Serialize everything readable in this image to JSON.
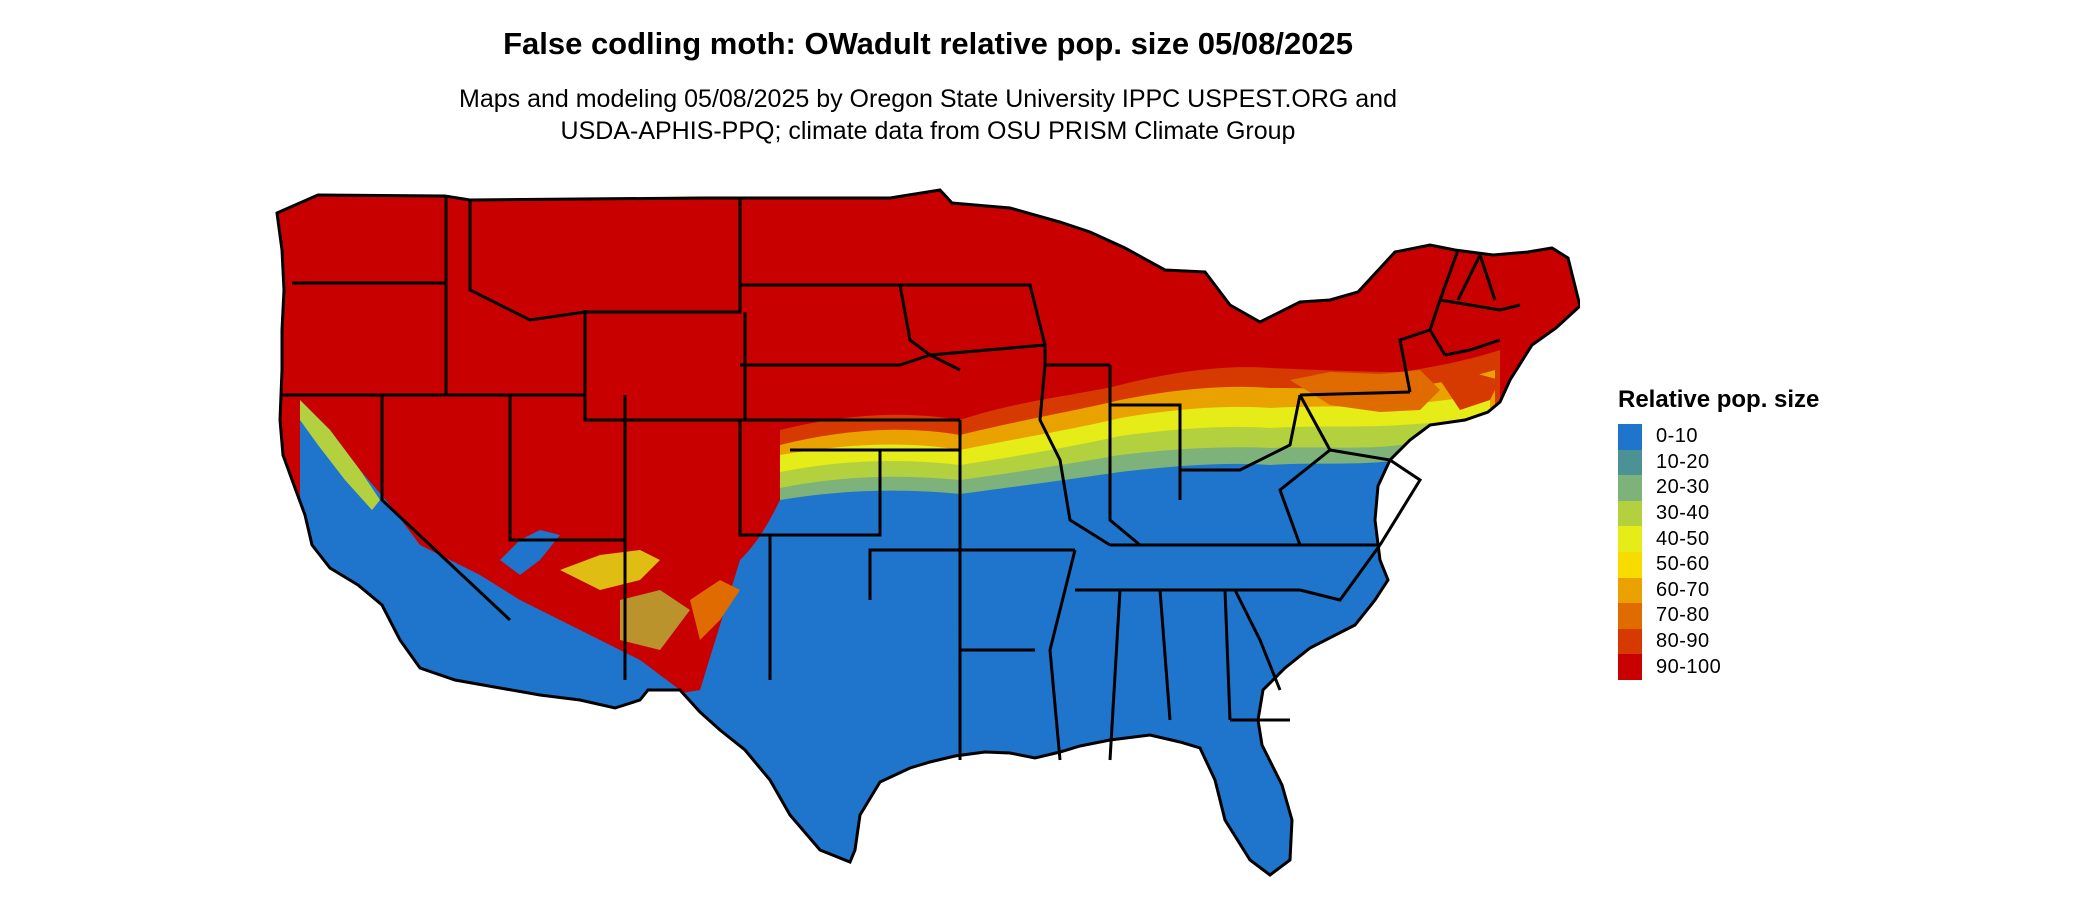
{
  "title": "False codling moth: OWadult relative pop. size 05/08/2025",
  "subtitle_line1": "Maps and modeling 05/08/2025 by Oregon State University IPPC USPEST.ORG and",
  "subtitle_line2": "USDA-APHIS-PPQ; climate data from OSU PRISM Climate Group",
  "legend": {
    "title": "Relative pop. size",
    "items": [
      {
        "label": "0-10",
        "color": "#1f74cb"
      },
      {
        "label": "10-20",
        "color": "#4b9294"
      },
      {
        "label": "20-30",
        "color": "#7db27a"
      },
      {
        "label": "30-40",
        "color": "#b3d13f"
      },
      {
        "label": "40-50",
        "color": "#e6ec17"
      },
      {
        "label": "50-60",
        "color": "#f8dc00"
      },
      {
        "label": "60-70",
        "color": "#eaa200"
      },
      {
        "label": "70-80",
        "color": "#e06b00"
      },
      {
        "label": "80-90",
        "color": "#d73a00"
      },
      {
        "label": "90-100",
        "color": "#c90000"
      }
    ]
  }
}
